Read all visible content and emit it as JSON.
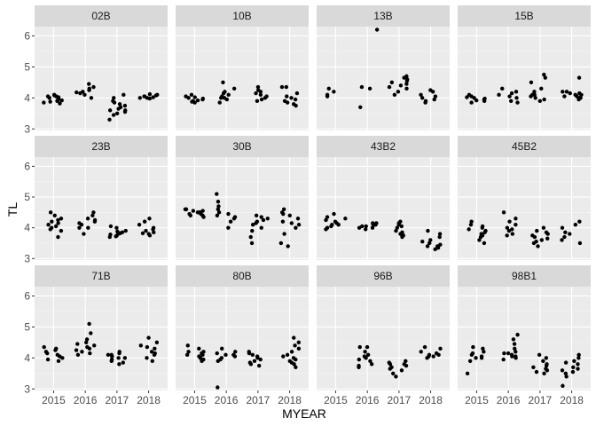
{
  "chart_data": {
    "type": "scatter",
    "facet": "wrap",
    "xlabel": "MYEAR",
    "ylabel": "TL",
    "ylim": [
      2.95,
      6.3
    ],
    "y_ticks": [
      3,
      4,
      5,
      6
    ],
    "x_categories": [
      2015,
      2016,
      2017,
      2018
    ],
    "grid": true,
    "legend": "none",
    "colors": {
      "panel_bg": "#ebebeb",
      "strip_bg": "#d9d9d9",
      "grid_major": "#ffffff",
      "grid_minor": "#f5f5f5",
      "point": "#000000"
    },
    "panels": [
      {
        "label": "02B",
        "points": {
          "2015": [
            3.85,
            3.92,
            4.0,
            4.05,
            3.95,
            4.1,
            3.88,
            4.02,
            3.98,
            4.08,
            3.9,
            4.05,
            3.82
          ],
          "2016": [
            4.15,
            4.2,
            4.3,
            4.25,
            4.18,
            4.45,
            4.1,
            4.35,
            4.0
          ],
          "2017": [
            3.3,
            3.5,
            3.6,
            3.7,
            3.8,
            3.65,
            3.55,
            3.75,
            3.85,
            4.0,
            4.1,
            3.45,
            3.6,
            3.9
          ],
          "2018": [
            4.0,
            4.05,
            4.1,
            3.98,
            4.02,
            4.08,
            4.0,
            4.05,
            4.12
          ]
        }
      },
      {
        "label": "10B",
        "points": {
          "2015": [
            3.85,
            3.9,
            4.0,
            3.95,
            4.05,
            3.88,
            4.1,
            3.92,
            3.98,
            4.02
          ],
          "2016": [
            3.85,
            4.0,
            4.05,
            4.15,
            4.2,
            4.5,
            3.95,
            4.1,
            4.0,
            4.3
          ],
          "2017": [
            3.9,
            4.0,
            4.1,
            4.2,
            4.25,
            4.35,
            3.95,
            4.05,
            4.15
          ],
          "2018": [
            3.8,
            3.9,
            4.0,
            4.05,
            4.35,
            3.85,
            3.95,
            4.15,
            4.35,
            3.75
          ]
        }
      },
      {
        "label": "13B",
        "points": {
          "2015": [
            4.1,
            4.2,
            4.3,
            4.05
          ],
          "2016": [
            6.2,
            4.35,
            4.3,
            3.7
          ],
          "2017": [
            4.2,
            4.4,
            4.5,
            4.6,
            4.7,
            4.3,
            4.45,
            4.55,
            4.65,
            4.1,
            4.35
          ],
          "2018": [
            3.9,
            4.0,
            4.1,
            4.2,
            3.85,
            4.05,
            4.25,
            3.95
          ]
        }
      },
      {
        "label": "15B",
        "points": {
          "2015": [
            3.85,
            3.95,
            4.05,
            4.0,
            3.9,
            4.1,
            3.92,
            4.02,
            3.98
          ],
          "2016": [
            3.9,
            4.0,
            4.1,
            4.2,
            4.3,
            3.85,
            4.05,
            4.15
          ],
          "2017": [
            4.0,
            4.1,
            4.2,
            4.3,
            4.5,
            4.65,
            4.75,
            3.95,
            3.9,
            4.05,
            4.1
          ],
          "2018": [
            4.0,
            4.05,
            4.1,
            4.15,
            4.2,
            4.65,
            3.95,
            4.1,
            4.0,
            4.05,
            4.15,
            4.2
          ]
        }
      },
      {
        "label": "23B",
        "points": {
          "2015": [
            3.7,
            3.9,
            4.0,
            4.1,
            4.2,
            4.3,
            4.4,
            4.5,
            4.05,
            4.15,
            3.95,
            4.25
          ],
          "2016": [
            3.8,
            4.0,
            4.1,
            4.2,
            4.25,
            4.3,
            4.4,
            4.5,
            4.15,
            4.0
          ],
          "2017": [
            3.7,
            3.75,
            3.8,
            3.85,
            3.9,
            4.0,
            4.05,
            3.72,
            3.78,
            3.82,
            3.88
          ],
          "2018": [
            3.75,
            3.8,
            3.85,
            3.9,
            4.0,
            4.1,
            4.2,
            4.3,
            3.82,
            3.95
          ]
        }
      },
      {
        "label": "30B",
        "points": {
          "2015": [
            4.4,
            4.45,
            4.5,
            4.55,
            4.6,
            4.5,
            4.45,
            4.55,
            4.4,
            4.5,
            4.35,
            4.6,
            4.5
          ],
          "2016": [
            4.0,
            4.2,
            4.3,
            4.4,
            4.5,
            4.6,
            4.7,
            4.85,
            5.1,
            4.45,
            4.35
          ],
          "2017": [
            3.5,
            3.7,
            3.9,
            4.0,
            4.1,
            4.2,
            4.3,
            4.4,
            4.35,
            4.25,
            4.15
          ],
          "2018": [
            3.4,
            3.5,
            3.8,
            4.0,
            4.1,
            4.2,
            4.3,
            4.4,
            4.5,
            4.6,
            4.15,
            4.45
          ]
        }
      },
      {
        "label": "43B2",
        "points": {
          "2015": [
            4.0,
            4.05,
            4.1,
            4.15,
            4.2,
            4.3,
            4.35,
            4.45,
            4.1,
            3.95,
            4.25
          ],
          "2016": [
            3.95,
            4.0,
            4.05,
            4.1,
            4.15,
            4.0,
            4.05,
            4.1,
            4.15,
            4.1
          ],
          "2017": [
            3.7,
            3.8,
            3.9,
            4.0,
            4.1,
            4.15,
            4.2,
            3.75,
            3.85,
            4.05
          ],
          "2018": [
            3.3,
            3.35,
            3.4,
            3.45,
            3.5,
            3.6,
            3.7,
            3.8,
            3.9,
            3.55,
            3.4
          ]
        }
      },
      {
        "label": "45B2",
        "points": {
          "2015": [
            3.5,
            3.7,
            3.8,
            3.9,
            4.0,
            4.1,
            4.2,
            3.75,
            3.95,
            3.85,
            4.05,
            3.6
          ],
          "2016": [
            3.8,
            3.9,
            4.0,
            4.1,
            4.2,
            4.3,
            4.5,
            3.95,
            3.75
          ],
          "2017": [
            3.4,
            3.5,
            3.6,
            3.7,
            3.8,
            3.85,
            3.9,
            4.0,
            3.65,
            3.75,
            3.55
          ],
          "2018": [
            3.5,
            3.6,
            3.7,
            3.8,
            4.0,
            4.1,
            4.2,
            3.85
          ]
        }
      },
      {
        "label": "71B",
        "points": {
          "2015": [
            3.95,
            4.0,
            4.1,
            4.15,
            4.2,
            4.3,
            4.35,
            4.05,
            4.25,
            3.9
          ],
          "2016": [
            4.1,
            4.2,
            4.3,
            4.4,
            4.5,
            4.6,
            4.8,
            5.1,
            4.15,
            4.35,
            4.45,
            4.25
          ],
          "2017": [
            3.8,
            3.9,
            4.0,
            4.05,
            4.1,
            4.15,
            4.2,
            3.85,
            3.95,
            4.0,
            4.1
          ],
          "2018": [
            3.9,
            4.0,
            4.1,
            4.2,
            4.3,
            4.4,
            4.5,
            4.65,
            4.15,
            4.35
          ]
        }
      },
      {
        "label": "80B",
        "points": {
          "2015": [
            3.9,
            4.0,
            4.05,
            4.1,
            4.15,
            4.2,
            4.3,
            4.4,
            4.1,
            3.95,
            4.2
          ],
          "2016": [
            3.05,
            3.9,
            4.0,
            4.05,
            4.1,
            4.2,
            4.3,
            3.95,
            4.15,
            4.1
          ],
          "2017": [
            3.75,
            3.8,
            3.9,
            4.0,
            4.1,
            4.15,
            4.2,
            3.85,
            3.95,
            4.05
          ],
          "2018": [
            3.7,
            3.8,
            3.9,
            4.0,
            4.1,
            4.2,
            4.3,
            4.4,
            4.5,
            4.65,
            3.85,
            3.95,
            4.05
          ]
        }
      },
      {
        "label": "96B",
        "points": {
          "2015": [],
          "2016": [
            3.7,
            3.8,
            3.9,
            4.0,
            4.1,
            4.2,
            4.35,
            4.35,
            3.75,
            3.95,
            4.05
          ],
          "2017": [
            3.4,
            3.5,
            3.6,
            3.7,
            3.8,
            3.85,
            3.9,
            3.75,
            3.65,
            3.8
          ],
          "2018": [
            4.0,
            4.05,
            4.1,
            4.15,
            4.2,
            4.3,
            4.35,
            4.05,
            4.1
          ]
        }
      },
      {
        "label": "98B1",
        "points": {
          "2015": [
            3.5,
            3.9,
            4.0,
            4.05,
            4.1,
            4.2,
            4.3,
            4.35,
            4.0,
            4.15
          ],
          "2016": [
            3.95,
            4.0,
            4.05,
            4.1,
            4.15,
            4.2,
            4.3,
            4.45,
            4.6,
            4.75,
            4.05,
            4.15
          ],
          "2017": [
            3.5,
            3.55,
            3.6,
            3.7,
            3.8,
            3.9,
            4.0,
            4.1,
            3.65,
            3.75
          ],
          "2018": [
            3.1,
            3.4,
            3.5,
            3.6,
            3.7,
            3.8,
            3.9,
            4.0,
            4.1,
            3.65,
            3.85,
            3.55
          ]
        }
      }
    ]
  }
}
